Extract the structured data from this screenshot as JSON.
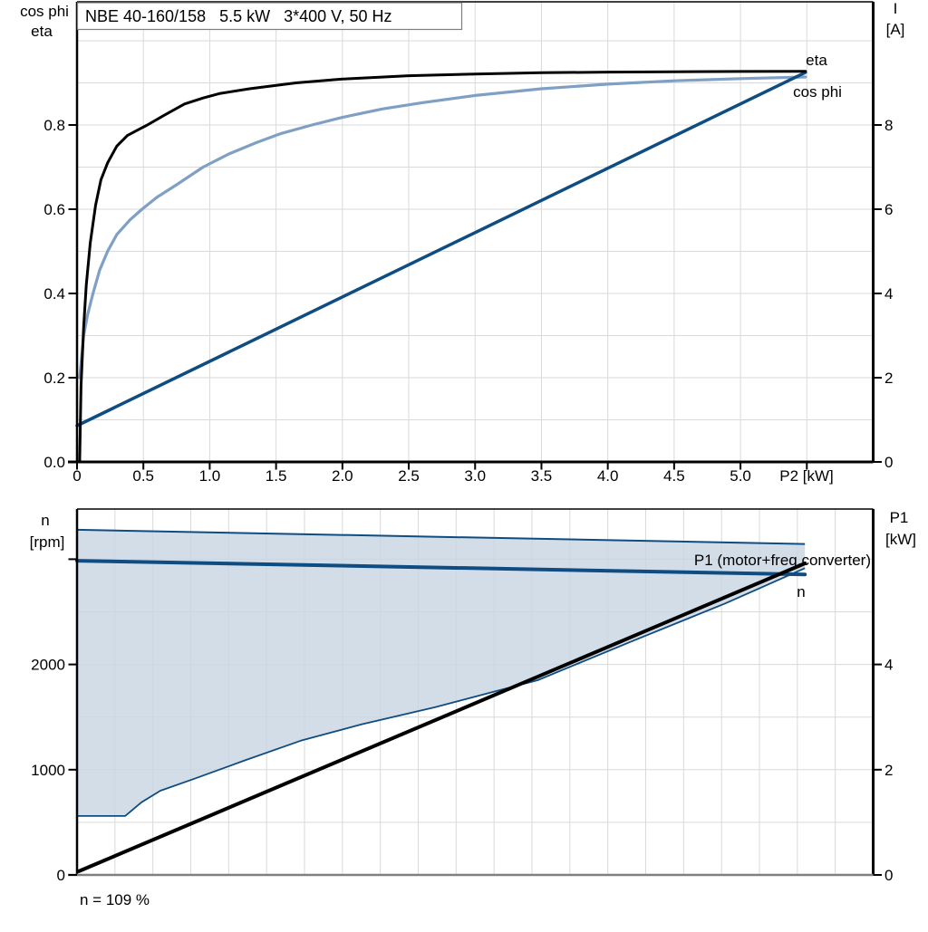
{
  "background": "#ffffff",
  "colors": {
    "black": "#000000",
    "dark_blue": "#0f4c81",
    "light_blue": "#7f9fc4",
    "n_label_blue": "#2a6099",
    "fill": "#c9d6e3",
    "grid": "#d9d9d9",
    "axis_grey": "#808080",
    "box_border": "#7f7f7f"
  },
  "chart_data": [
    {
      "type": "line",
      "title": "NBE 40-160/158   5.5 kW   3*400 V, 50 Hz",
      "axis_left_label_line1": "cos phi",
      "axis_left_label_line2": "eta",
      "axis_right_label_line1": "I",
      "axis_right_label_line2": "[A]",
      "xlabel": "P2 [kW]",
      "xlabel_tick_value": 5.5,
      "x_range": [
        0,
        6
      ],
      "grid_x_step": 0.5,
      "grid_y_step": 0.1,
      "y_left_range": [
        0,
        1.09
      ],
      "y_right_range": [
        0,
        10.9
      ],
      "x_ticks": [
        {
          "v": 0,
          "label": "0"
        },
        {
          "v": 0.5,
          "label": "0.5"
        },
        {
          "v": 1.0,
          "label": "1.0"
        },
        {
          "v": 1.5,
          "label": "1.5"
        },
        {
          "v": 2.0,
          "label": "2.0"
        },
        {
          "v": 2.5,
          "label": "2.5"
        },
        {
          "v": 3.0,
          "label": "3.0"
        },
        {
          "v": 3.5,
          "label": "3.5"
        },
        {
          "v": 4.0,
          "label": "4.0"
        },
        {
          "v": 4.5,
          "label": "4.5"
        },
        {
          "v": 5.0,
          "label": "5.0"
        }
      ],
      "y_left_ticks": [
        {
          "v": 0.0,
          "label": "0.0"
        },
        {
          "v": 0.2,
          "label": "0.2"
        },
        {
          "v": 0.4,
          "label": "0.4"
        },
        {
          "v": 0.6,
          "label": "0.6"
        },
        {
          "v": 0.8,
          "label": "0.8"
        }
      ],
      "y_right_ticks": [
        {
          "v": 0,
          "label": "0"
        },
        {
          "v": 2,
          "label": "2"
        },
        {
          "v": 4,
          "label": "4"
        },
        {
          "v": 6,
          "label": "6"
        },
        {
          "v": 8,
          "label": "8"
        }
      ],
      "series": [
        {
          "name": "cos-phi",
          "label": "cos phi",
          "axis": "left",
          "color": "light_blue",
          "width": 3.2,
          "points": [
            [
              0.02,
              0.2
            ],
            [
              0.05,
              0.3
            ],
            [
              0.08,
              0.35
            ],
            [
              0.12,
              0.4
            ],
            [
              0.17,
              0.455
            ],
            [
              0.23,
              0.5
            ],
            [
              0.3,
              0.54
            ],
            [
              0.4,
              0.575
            ],
            [
              0.49,
              0.6
            ],
            [
              0.6,
              0.628
            ],
            [
              0.75,
              0.658
            ],
            [
              0.95,
              0.7
            ],
            [
              1.15,
              0.732
            ],
            [
              1.35,
              0.758
            ],
            [
              1.54,
              0.78
            ],
            [
              1.77,
              0.8
            ],
            [
              2.0,
              0.818
            ],
            [
              2.3,
              0.838
            ],
            [
              2.6,
              0.853
            ],
            [
              3.0,
              0.87
            ],
            [
              3.5,
              0.886
            ],
            [
              4.0,
              0.897
            ],
            [
              4.5,
              0.905
            ],
            [
              5.0,
              0.91
            ],
            [
              5.49,
              0.914
            ]
          ]
        },
        {
          "name": "current",
          "label": "I",
          "axis": "right",
          "color": "dark_blue",
          "width": 3.5,
          "points": [
            [
              0,
              0.86
            ],
            [
              5.49,
              9.25
            ]
          ]
        },
        {
          "name": "eta",
          "label": "eta",
          "axis": "left",
          "color": "black",
          "width": 3,
          "points": [
            [
              0.02,
              0.0
            ],
            [
              0.03,
              0.18
            ],
            [
              0.05,
              0.32
            ],
            [
              0.07,
              0.42
            ],
            [
              0.1,
              0.52
            ],
            [
              0.14,
              0.61
            ],
            [
              0.18,
              0.67
            ],
            [
              0.23,
              0.71
            ],
            [
              0.3,
              0.75
            ],
            [
              0.38,
              0.775
            ],
            [
              0.47,
              0.79
            ],
            [
              0.53,
              0.8
            ],
            [
              0.65,
              0.822
            ],
            [
              0.81,
              0.85
            ],
            [
              0.95,
              0.864
            ],
            [
              1.08,
              0.875
            ],
            [
              1.3,
              0.886
            ],
            [
              1.65,
              0.9
            ],
            [
              2.0,
              0.909
            ],
            [
              2.5,
              0.917
            ],
            [
              3.0,
              0.921
            ],
            [
              3.5,
              0.924
            ],
            [
              4.0,
              0.9255
            ],
            [
              4.5,
              0.9265
            ],
            [
              5.0,
              0.927
            ],
            [
              5.49,
              0.9275
            ]
          ]
        }
      ]
    },
    {
      "type": "line-area",
      "axis_left_label_line1": "n",
      "axis_left_label_line2": "[rpm]",
      "axis_right_label_line1": "P1",
      "axis_right_label_line2": "[kW]",
      "note": "n = 109 %",
      "x_divisions": 21,
      "y_left_range": [
        0,
        3477
      ],
      "y_right_range": [
        0,
        6.95
      ],
      "grid_rpm_step": 500,
      "y_left_ticks": [
        {
          "v": 0,
          "label": "0"
        },
        {
          "v": 1000,
          "label": "1000"
        },
        {
          "v": 2000,
          "label": "2000"
        }
      ],
      "y_left_ticks_unlabeled": [
        3000
      ],
      "y_right_ticks": [
        {
          "v": 0,
          "label": "0"
        },
        {
          "v": 2,
          "label": "2"
        },
        {
          "v": 4,
          "label": "4"
        }
      ],
      "area": {
        "name": "operating-envelope",
        "upper_rpm": [
          [
            0,
            3280
          ],
          [
            19.2,
            3145
          ]
        ],
        "lower_rpm": [
          [
            0,
            560
          ],
          [
            1.27,
            560
          ],
          [
            1.7,
            690
          ],
          [
            2.2,
            800
          ],
          [
            3.1,
            915
          ],
          [
            4.4,
            1085
          ],
          [
            5.9,
            1275
          ],
          [
            7.5,
            1430
          ],
          [
            9.45,
            1595
          ],
          [
            11.4,
            1780
          ],
          [
            12.15,
            1850
          ],
          [
            14.7,
            2230
          ],
          [
            17.1,
            2580
          ],
          [
            19.2,
            2915
          ]
        ]
      },
      "series": [
        {
          "name": "speed",
          "label": "n",
          "axis": "rpm",
          "color": "dark_blue",
          "width": 4,
          "points": [
            [
              0,
              2985
            ],
            [
              19.2,
              2855
            ]
          ]
        },
        {
          "name": "p1-input-power",
          "label": "P1 (motor+freq.converter)",
          "axis": "kw",
          "color": "black",
          "width": 4,
          "points": [
            [
              0.05,
              0.07
            ],
            [
              19.2,
              5.92
            ]
          ]
        }
      ]
    }
  ]
}
